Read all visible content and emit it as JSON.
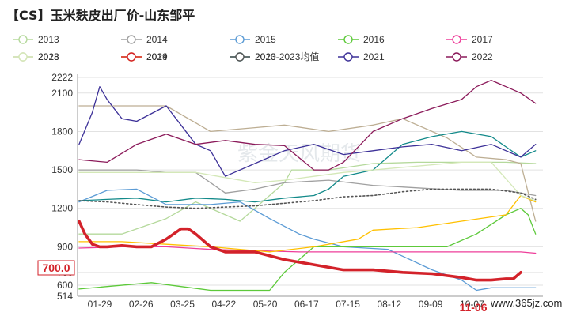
{
  "title": "【CS】玉米麸皮出厂价-山东邹平",
  "watermark": "紫金天风期货",
  "site_watermark": "www.365jz.com",
  "current_label": "700.0",
  "current_date_label": "11-06",
  "chart_data": {
    "type": "line",
    "title": "【CS】玉米麸皮出厂价-山东邹平",
    "x_ticks": [
      "01-29",
      "02-26",
      "03-25",
      "04-22",
      "05-20",
      "06-17",
      "07-15",
      "08-12",
      "09-09",
      "10-07",
      "11-06"
    ],
    "y_ticks": [
      514.0,
      600.0,
      700.0,
      900.0,
      1200,
      1500,
      1800,
      2100,
      2222
    ],
    "ylim": [
      514.0,
      2222
    ],
    "grid": true,
    "legend": "top",
    "series": [
      {
        "name": "2013",
        "color": "#b5d99c",
        "width": 1.3,
        "x": [
          1,
          30,
          60,
          80,
          110,
          140,
          145,
          170,
          200,
          230,
          260,
          290,
          310
        ],
        "y": [
          1000,
          1000,
          1120,
          1250,
          1100,
          1400,
          1500,
          1500,
          1550,
          1560,
          1560,
          1560,
          1550
        ]
      },
      {
        "name": "2014",
        "color": "#a0a0a0",
        "width": 1.3,
        "x": [
          1,
          20,
          40,
          60,
          80,
          100,
          120,
          140,
          170,
          200,
          230,
          260,
          290,
          310
        ],
        "y": [
          1500,
          1500,
          1500,
          1480,
          1480,
          1320,
          1350,
          1400,
          1420,
          1380,
          1360,
          1340,
          1340,
          1300
        ]
      },
      {
        "name": "2015",
        "color": "#5b9bd5",
        "width": 1.3,
        "x": [
          1,
          20,
          40,
          60,
          90,
          110,
          130,
          150,
          160,
          180,
          210,
          240,
          260,
          270,
          280,
          310
        ],
        "y": [
          1250,
          1340,
          1350,
          1230,
          1230,
          1250,
          1120,
          1000,
          960,
          900,
          880,
          720,
          640,
          560,
          580,
          580
        ]
      },
      {
        "name": "2016",
        "color": "#5dc93a",
        "width": 1.3,
        "x": [
          1,
          20,
          50,
          70,
          90,
          120,
          130,
          140,
          160,
          190,
          200,
          220,
          240,
          250,
          270,
          290,
          300,
          305,
          310
        ],
        "y": [
          570,
          590,
          620,
          590,
          560,
          560,
          560,
          700,
          900,
          900,
          900,
          900,
          900,
          900,
          1000,
          1150,
          1200,
          1150,
          1000
        ]
      },
      {
        "name": "2017",
        "color": "#ee3e9a",
        "width": 1.3,
        "x": [
          1,
          30,
          60,
          90,
          120,
          150,
          180,
          210,
          240,
          270,
          300,
          310
        ],
        "y": [
          890,
          900,
          900,
          880,
          870,
          860,
          860,
          860,
          860,
          860,
          860,
          850
        ]
      },
      {
        "name": "2018",
        "color": "#bdae93",
        "width": 1.3,
        "x": [
          1,
          30,
          60,
          90,
          120,
          140,
          170,
          200,
          220,
          250,
          270,
          290,
          300,
          310
        ],
        "y": [
          2000,
          2000,
          2000,
          1800,
          1830,
          1850,
          1800,
          1850,
          1900,
          1750,
          1600,
          1580,
          1550,
          1100
        ]
      },
      {
        "name": "2019",
        "color": "#ffc000",
        "width": 1.3,
        "x": [
          1,
          30,
          60,
          90,
          110,
          130,
          160,
          190,
          200,
          230,
          260,
          290,
          300,
          310
        ],
        "y": [
          940,
          940,
          920,
          900,
          880,
          860,
          900,
          960,
          1030,
          1050,
          1100,
          1150,
          1300,
          1250
        ]
      },
      {
        "name": "2020",
        "color": "#138a8a",
        "width": 1.3,
        "x": [
          1,
          20,
          40,
          60,
          80,
          100,
          120,
          140,
          160,
          170,
          180,
          200,
          220,
          240,
          260,
          280,
          300,
          310
        ],
        "y": [
          1260,
          1270,
          1280,
          1250,
          1280,
          1270,
          1250,
          1280,
          1300,
          1350,
          1450,
          1500,
          1700,
          1760,
          1800,
          1760,
          1600,
          1650
        ]
      },
      {
        "name": "2021",
        "color": "#3d3198",
        "width": 1.3,
        "x": [
          1,
          10,
          15,
          20,
          30,
          40,
          60,
          70,
          80,
          90,
          100,
          120,
          140,
          160,
          180,
          200,
          220,
          240,
          260,
          280,
          300,
          310
        ],
        "y": [
          1700,
          1950,
          2150,
          2050,
          1900,
          1880,
          2000,
          1850,
          1700,
          1650,
          1450,
          1550,
          1650,
          1700,
          1620,
          1650,
          1680,
          1700,
          1650,
          1700,
          1600,
          1700
        ]
      },
      {
        "name": "2022",
        "color": "#8b1a5a",
        "width": 1.3,
        "x": [
          1,
          20,
          40,
          60,
          80,
          100,
          120,
          140,
          160,
          170,
          180,
          200,
          220,
          240,
          260,
          270,
          280,
          290,
          300,
          310
        ],
        "y": [
          1580,
          1560,
          1700,
          1780,
          1700,
          1730,
          1700,
          1690,
          1500,
          1500,
          1560,
          1800,
          1900,
          1980,
          2050,
          2150,
          2200,
          2150,
          2100,
          2020
        ]
      },
      {
        "name": "2023",
        "color": "#d4e8b8",
        "width": 1.3,
        "x": [
          1,
          40,
          80,
          120,
          140,
          160,
          180,
          200,
          220,
          240,
          260,
          280,
          300,
          310
        ],
        "y": [
          1480,
          1480,
          1480,
          1400,
          1420,
          1450,
          1480,
          1500,
          1520,
          1540,
          1560,
          1560,
          1300,
          1260
        ]
      },
      {
        "name": "2024",
        "color": "#d3222a",
        "width": 3.6,
        "x": [
          1,
          5,
          10,
          15,
          20,
          30,
          40,
          50,
          60,
          70,
          75,
          80,
          90,
          100,
          110,
          120,
          130,
          140,
          160,
          180,
          200,
          220,
          240,
          260,
          270,
          280,
          290,
          295,
          300
        ],
        "y": [
          1100,
          1000,
          920,
          900,
          900,
          910,
          900,
          900,
          960,
          1040,
          1040,
          1000,
          900,
          860,
          860,
          860,
          830,
          800,
          760,
          720,
          720,
          700,
          690,
          660,
          640,
          640,
          650,
          650,
          700
        ]
      },
      {
        "name": "2013-2023均值",
        "color": "#555555",
        "width": 1.6,
        "dash": true,
        "x": [
          1,
          20,
          40,
          60,
          80,
          100,
          120,
          140,
          160,
          180,
          200,
          220,
          240,
          260,
          280,
          300,
          310
        ],
        "y": [
          1260,
          1250,
          1230,
          1210,
          1200,
          1210,
          1220,
          1240,
          1260,
          1290,
          1300,
          1330,
          1350,
          1350,
          1350,
          1320,
          1270
        ]
      }
    ]
  }
}
